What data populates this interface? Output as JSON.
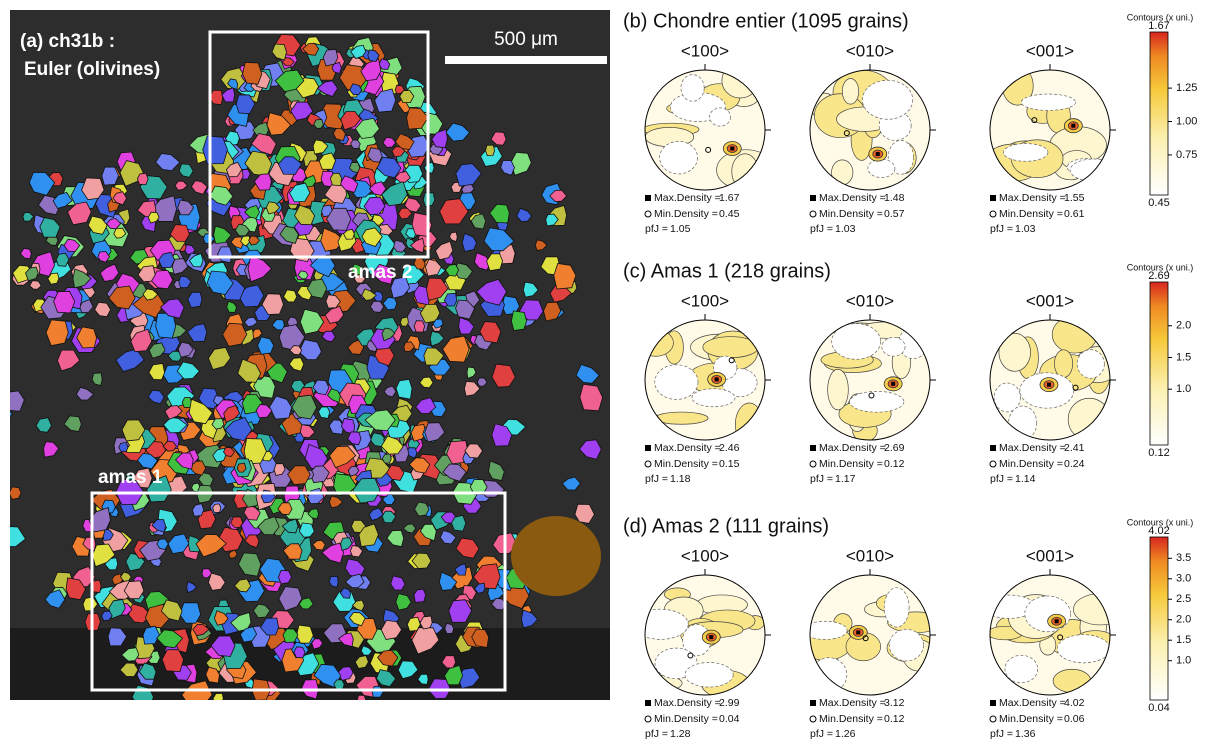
{
  "panel_a": {
    "title": "(a) ch31b :",
    "subtitle": "Euler (olivines)",
    "scale_bar": "500 μm",
    "region_labels": [
      "amas 2",
      "amas 1"
    ]
  },
  "stat_labels": {
    "max": "Max.Density =",
    "min": "Min.Density =",
    "pfj": "pfJ ="
  },
  "colorbar_title": "Contours (x uni.)",
  "panels": [
    {
      "title": "(b) Chondre entier (1095 grains)",
      "figures": [
        {
          "axis": "<100>",
          "max": "1.67",
          "min": "0.45",
          "pfj": "1.05"
        },
        {
          "axis": "<010>",
          "max": "1.48",
          "min": "0.57",
          "pfj": "1.03"
        },
        {
          "axis": "<001>",
          "max": "1.55",
          "min": "0.61",
          "pfj": "1.03"
        }
      ],
      "colorbar": {
        "max": "1.67",
        "min": "0.45",
        "ticks": [
          "1.25",
          "1.00",
          "0.75"
        ]
      }
    },
    {
      "title": "(c) Amas 1 (218 grains)",
      "figures": [
        {
          "axis": "<100>",
          "max": "2.46",
          "min": "0.15",
          "pfj": "1.18"
        },
        {
          "axis": "<010>",
          "max": "2.69",
          "min": "0.12",
          "pfj": "1.17"
        },
        {
          "axis": "<001>",
          "max": "2.41",
          "min": "0.24",
          "pfj": "1.14"
        }
      ],
      "colorbar": {
        "max": "2.69",
        "min": "0.12",
        "ticks": [
          "2.0",
          "1.5",
          "1.0"
        ]
      }
    },
    {
      "title": "(d) Amas 2 (111 grains)",
      "figures": [
        {
          "axis": "<100>",
          "max": "2.99",
          "min": "0.04",
          "pfj": "1.28"
        },
        {
          "axis": "<010>",
          "max": "3.12",
          "min": "0.12",
          "pfj": "1.26"
        },
        {
          "axis": "<001>",
          "max": "4.02",
          "min": "0.06",
          "pfj": "1.36"
        }
      ],
      "colorbar": {
        "max": "4.02",
        "min": "0.04",
        "ticks": [
          "3.5",
          "3.0",
          "2.5",
          "2.0",
          "1.5",
          "1.0"
        ]
      }
    }
  ]
}
